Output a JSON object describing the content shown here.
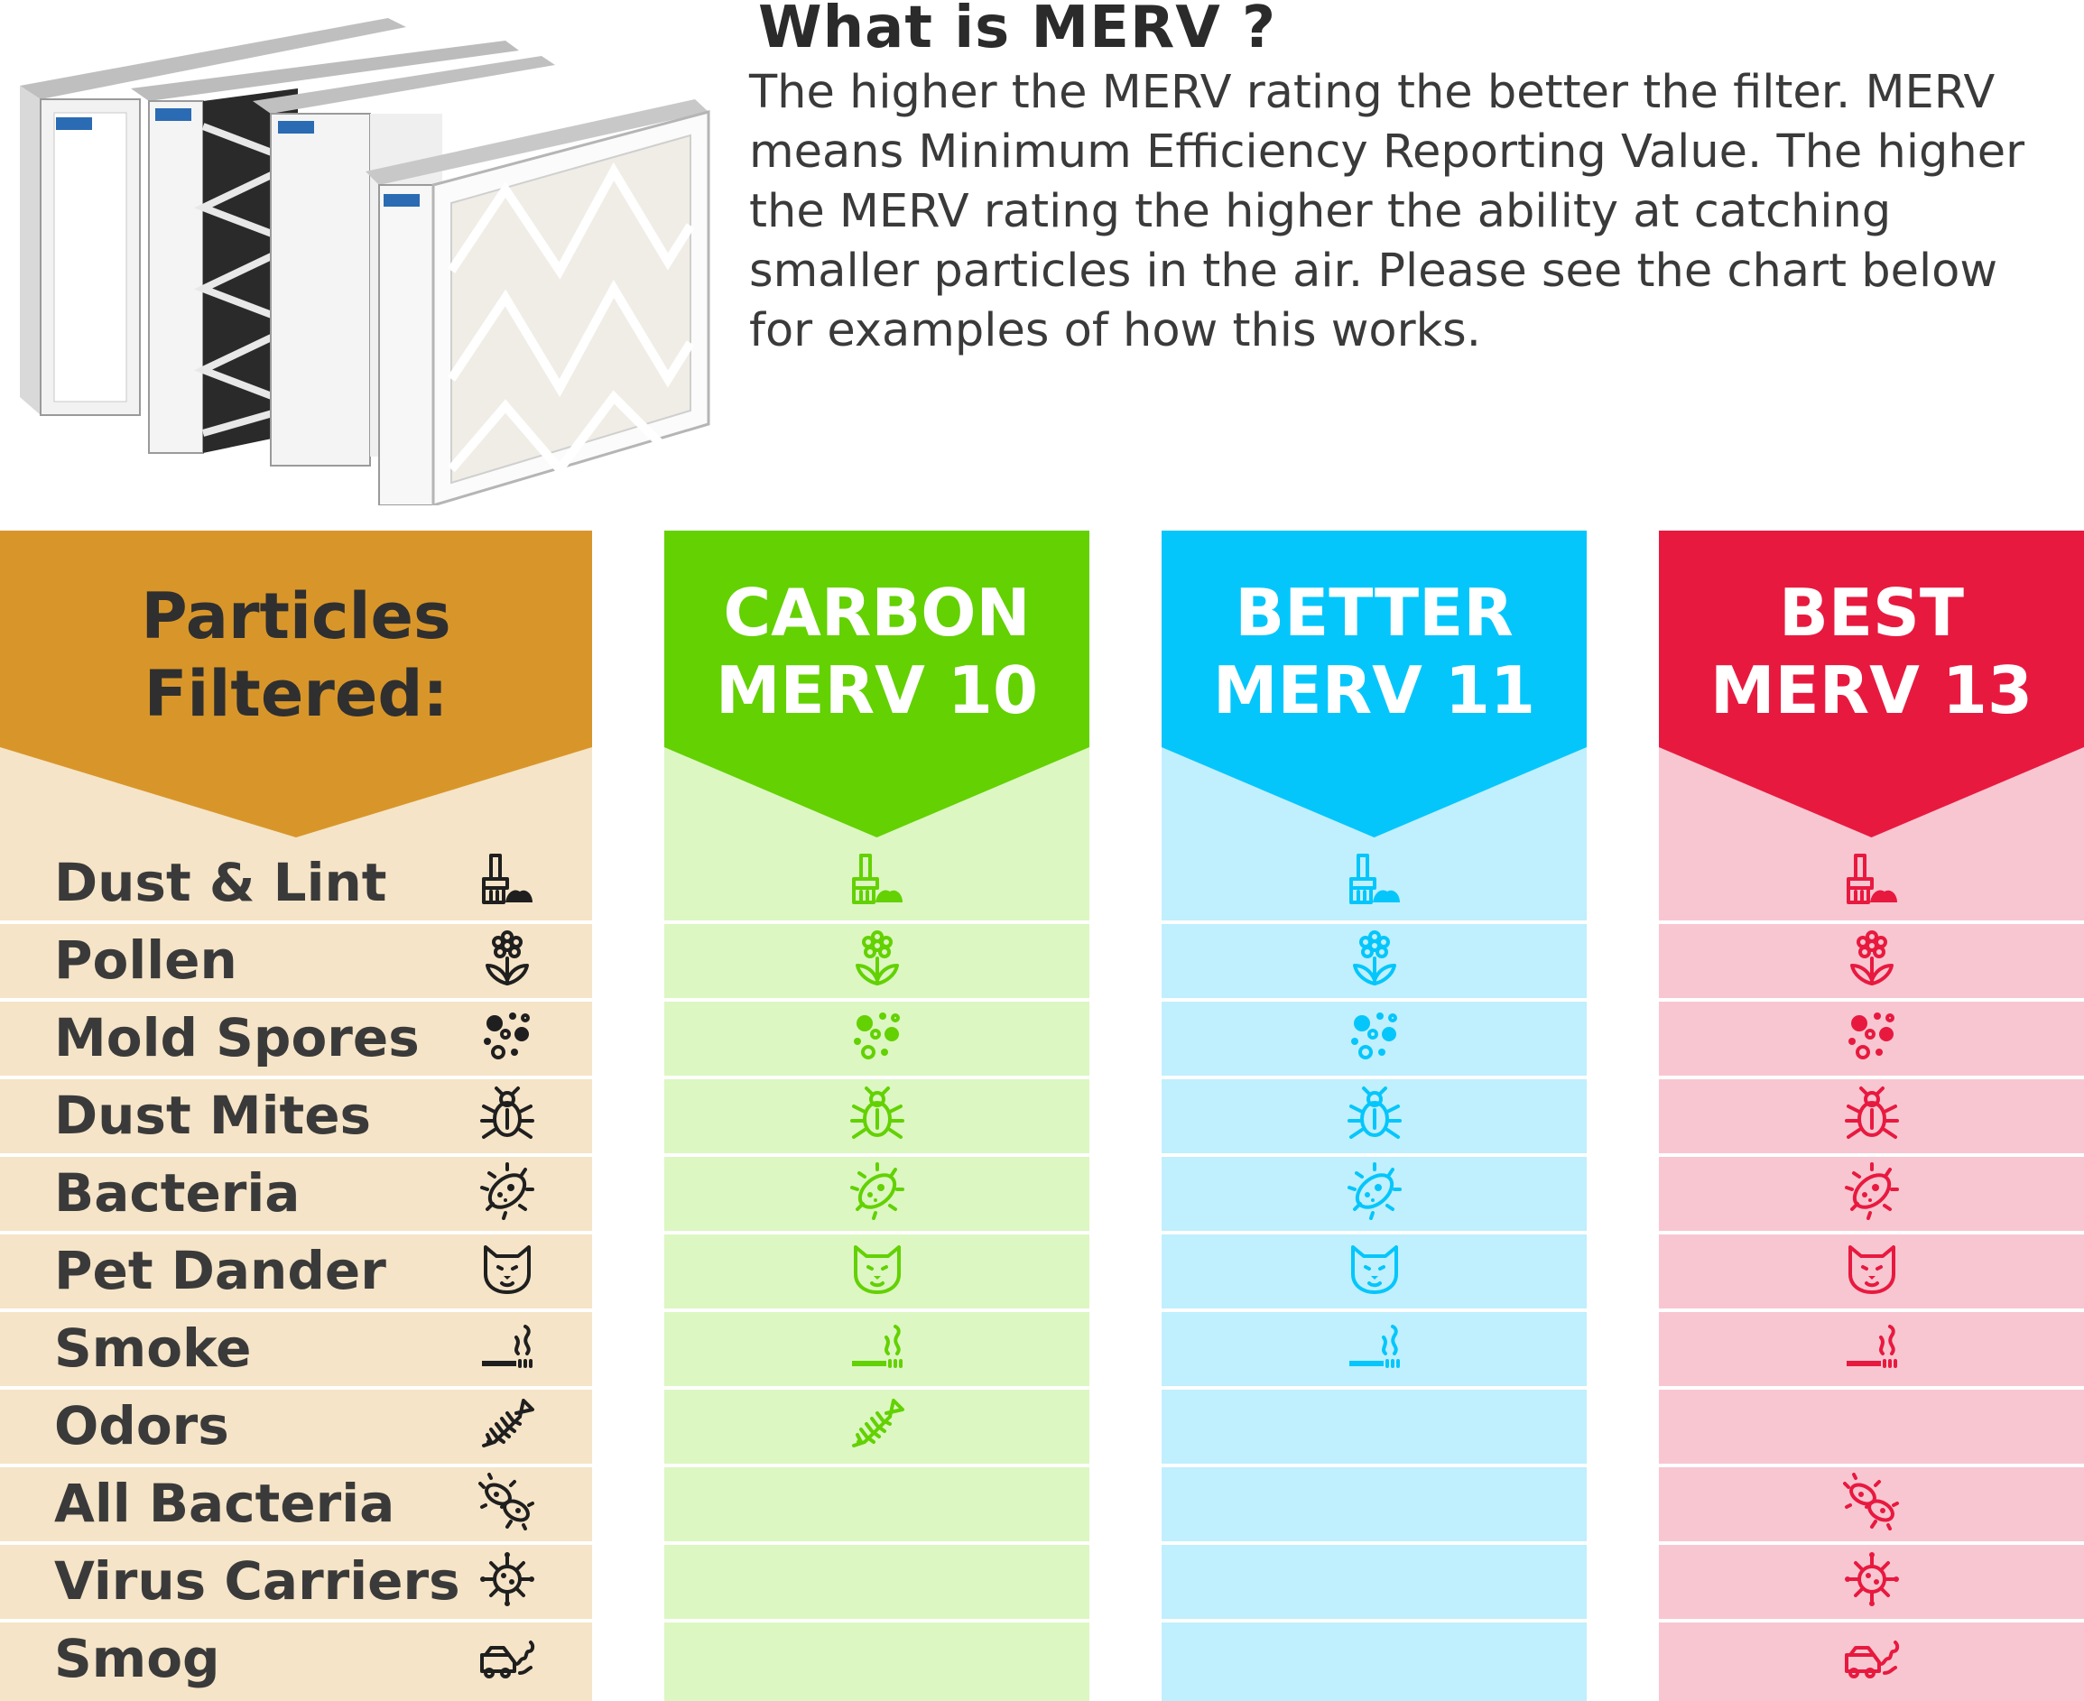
{
  "heading": {
    "title": "What is MERV ?",
    "body": "The higher the MERV rating the better the filter. MERV means Minimum Efficiency Reporting Value. The higher the MERV rating the higher the ability at catching smaller particles in the air. Please see the chart below for examples of how this works."
  },
  "particles_column": {
    "header_line1": "Particles",
    "header_line2": "Filtered:",
    "header_color": "#d8962a",
    "body_color": "#f5e4c7",
    "items": [
      {
        "label": "Dust & Lint",
        "icon": "broom-dust-icon"
      },
      {
        "label": "Pollen",
        "icon": "flower-icon"
      },
      {
        "label": "Mold Spores",
        "icon": "spores-icon"
      },
      {
        "label": "Dust Mites",
        "icon": "bug-icon"
      },
      {
        "label": "Bacteria",
        "icon": "bacteria-icon"
      },
      {
        "label": "Pet Dander",
        "icon": "cat-icon"
      },
      {
        "label": "Smoke",
        "icon": "cigarette-icon"
      },
      {
        "label": "Odors",
        "icon": "fish-bone-icon"
      },
      {
        "label": "All Bacteria",
        "icon": "bacteria-pair-icon"
      },
      {
        "label": "Virus Carriers",
        "icon": "virus-icon"
      },
      {
        "label": "Smog",
        "icon": "car-exhaust-icon"
      }
    ]
  },
  "filters": [
    {
      "line1": "CARBON",
      "line2": "MERV 10",
      "header_color": "#63d102",
      "body_color": "#dcf7c2",
      "icon_color": "#63d102",
      "filters": [
        true,
        true,
        true,
        true,
        true,
        true,
        true,
        true,
        false,
        false,
        false
      ]
    },
    {
      "line1": "BETTER",
      "line2": "MERV 11",
      "header_color": "#05c6fb",
      "body_color": "#c0effd",
      "icon_color": "#05c6fb",
      "filters": [
        true,
        true,
        true,
        true,
        true,
        true,
        true,
        false,
        false,
        false,
        false
      ]
    },
    {
      "line1": "BEST",
      "line2": "MERV 13",
      "header_color": "#e8193f",
      "body_color": "#f8c6d1",
      "icon_color": "#e8193f",
      "filters": [
        true,
        true,
        true,
        true,
        true,
        true,
        true,
        false,
        true,
        true,
        true
      ]
    }
  ]
}
